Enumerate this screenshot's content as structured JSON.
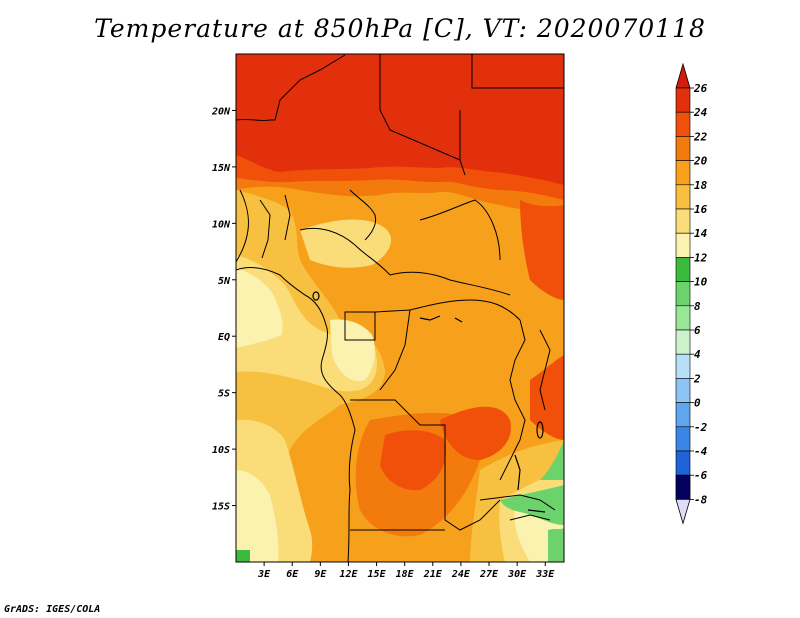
{
  "title": "Temperature at 850hPa [C], VT: 2020070118",
  "credit": "GrADS: IGES/COLA",
  "map": {
    "lon_range": [
      0,
      35
    ],
    "lat_range": [
      -20,
      25
    ],
    "lat_ticks": [
      {
        "value": 20,
        "label": "20N"
      },
      {
        "value": 15,
        "label": "15N"
      },
      {
        "value": 10,
        "label": "10N"
      },
      {
        "value": 5,
        "label": "5N"
      },
      {
        "value": 0,
        "label": "EQ"
      },
      {
        "value": -5,
        "label": "5S"
      },
      {
        "value": -10,
        "label": "10S"
      },
      {
        "value": -15,
        "label": "15S"
      }
    ],
    "lon_ticks": [
      {
        "value": 3,
        "label": "3E"
      },
      {
        "value": 6,
        "label": "6E"
      },
      {
        "value": 9,
        "label": "9E"
      },
      {
        "value": 12,
        "label": "12E"
      },
      {
        "value": 15,
        "label": "15E"
      },
      {
        "value": 18,
        "label": "18E"
      },
      {
        "value": 21,
        "label": "21E"
      },
      {
        "value": 24,
        "label": "24E"
      },
      {
        "value": 27,
        "label": "27E"
      },
      {
        "value": 30,
        "label": "30E"
      },
      {
        "value": 33,
        "label": "33E"
      }
    ]
  },
  "colorbar": {
    "levels": [
      {
        "label": "26",
        "color": "#e2300c"
      },
      {
        "label": "24",
        "color": "#f0500a"
      },
      {
        "label": "22",
        "color": "#f37a0c"
      },
      {
        "label": "20",
        "color": "#f6a01c"
      },
      {
        "label": "18",
        "color": "#f8c040"
      },
      {
        "label": "16",
        "color": "#fadc78"
      },
      {
        "label": "14",
        "color": "#fcf2b0"
      },
      {
        "label": "12",
        "color": "#3cba3c"
      },
      {
        "label": "10",
        "color": "#6cd26c"
      },
      {
        "label": "8",
        "color": "#98e698"
      },
      {
        "label": "6",
        "color": "#cdf3cd"
      },
      {
        "label": "4",
        "color": "#b8dff8"
      },
      {
        "label": "2",
        "color": "#8cc4f4"
      },
      {
        "label": "0",
        "color": "#5fa6ef"
      },
      {
        "label": "-2",
        "color": "#3a86e6"
      },
      {
        "label": "-4",
        "color": "#1e63d8"
      },
      {
        "label": "-6",
        "color": "#1540c0"
      },
      {
        "label": "-8",
        "color": "#0c1a9a"
      }
    ],
    "top_color": "#d61a0c",
    "bottom_color": "#e0dcf8",
    "bottom_extra_color": "#04005e"
  }
}
